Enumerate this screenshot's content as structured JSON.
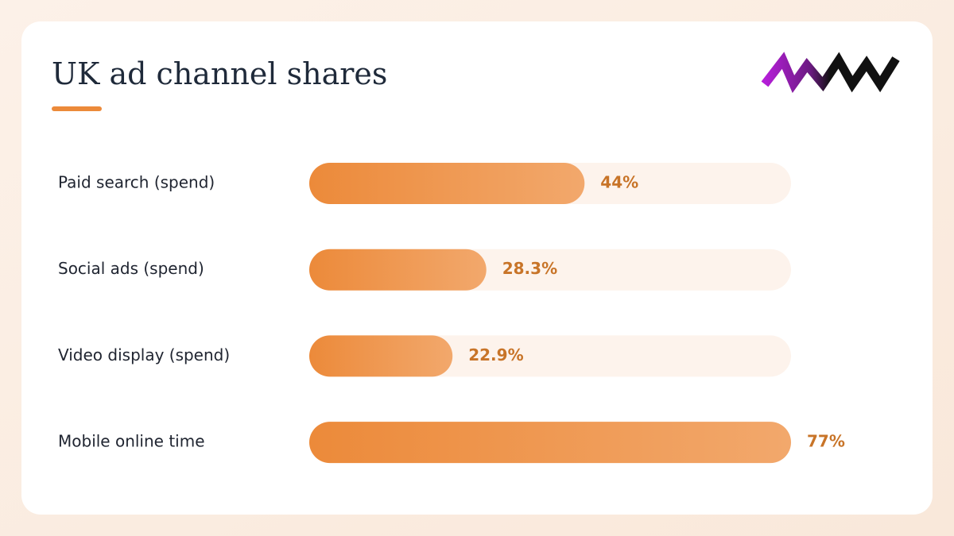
{
  "chart_data": {
    "type": "bar",
    "orientation": "horizontal",
    "title": "UK ad channel shares",
    "categories": [
      "Paid search (spend)",
      "Social ads (spend)",
      "Video display (spend)",
      "Mobile online time"
    ],
    "values": [
      44,
      28.3,
      22.9,
      77
    ],
    "value_labels": [
      "44%",
      "28.3%",
      "22.9%",
      "77%"
    ],
    "color": "#ec8a3a"
  }
}
